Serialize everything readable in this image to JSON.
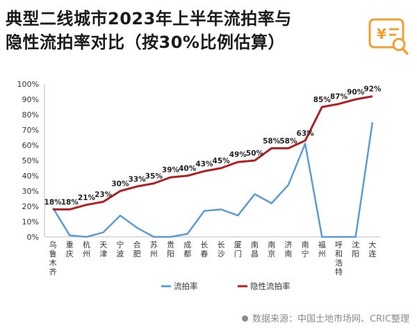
{
  "title": {
    "line1": "典型二线城市2023年上半年流拍率与",
    "line2": "隐性流拍率对比（按30%比例估算）"
  },
  "header_icon": {
    "name": "price-tag-search-icon",
    "symbol": "¥",
    "color": "#f0a030"
  },
  "source": "数据来源：中国土地市场网、CRIC整理",
  "colors": {
    "flow": "#5b9bd5",
    "hidden": "#b01f24"
  },
  "chart_data": {
    "type": "line",
    "title": "典型二线城市2023年上半年流拍率与隐性流拍率对比（按30%比例估算）",
    "categories": [
      "乌鲁木齐",
      "重庆",
      "杭州",
      "天津",
      "宁波",
      "合肥",
      "苏州",
      "贵阳",
      "成都",
      "长春",
      "长沙",
      "厦门",
      "南昌",
      "南京",
      "济南",
      "南宁",
      "福州",
      "呼和浩特",
      "沈阳",
      "大连"
    ],
    "series": [
      {
        "name": "流拍率",
        "values": [
          19,
          1,
          0,
          3,
          14,
          6,
          0,
          0,
          2,
          17,
          18,
          14,
          28,
          22,
          34,
          61,
          0,
          0,
          0,
          75
        ]
      },
      {
        "name": "隐性流拍率",
        "values": [
          18,
          18,
          21,
          23,
          30,
          33,
          35,
          39,
          40,
          43,
          45,
          49,
          50,
          58,
          58,
          63,
          85,
          87,
          90,
          92
        ],
        "labels": [
          "18%",
          "18%",
          "21%",
          "23%",
          "30%",
          "33%",
          "35%",
          "39%",
          "40%",
          "43%",
          "45%",
          "49%",
          "50%",
          "58%",
          "58%",
          "63%",
          "85%",
          "87%",
          "90%",
          "92%"
        ]
      }
    ],
    "ylim": [
      0,
      100
    ],
    "yticks": [
      "0%",
      "10%",
      "20%",
      "30%",
      "40%",
      "50%",
      "60%",
      "70%",
      "80%",
      "90%",
      "100%"
    ],
    "grid": false,
    "legend_position": "bottom"
  }
}
